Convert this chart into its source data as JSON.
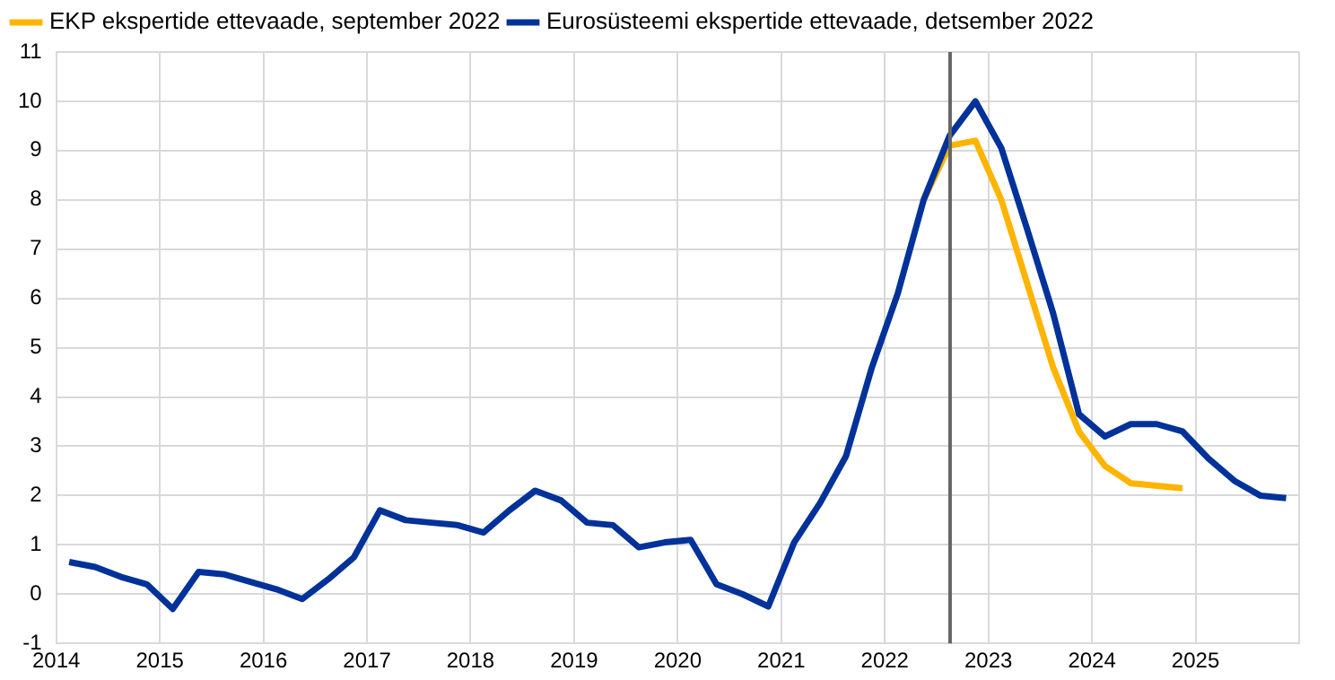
{
  "chart_data": {
    "type": "line",
    "x": [
      2014.125,
      2014.375,
      2014.625,
      2014.875,
      2015.125,
      2015.375,
      2015.625,
      2015.875,
      2016.125,
      2016.375,
      2016.625,
      2016.875,
      2017.125,
      2017.375,
      2017.625,
      2017.875,
      2018.125,
      2018.375,
      2018.625,
      2018.875,
      2019.125,
      2019.375,
      2019.625,
      2019.875,
      2020.125,
      2020.375,
      2020.625,
      2020.875,
      2021.125,
      2021.375,
      2021.625,
      2021.875,
      2022.125,
      2022.375,
      2022.625,
      2022.875,
      2023.125,
      2023.375,
      2023.625,
      2023.875,
      2024.125,
      2024.375,
      2024.625,
      2024.875,
      2025.125,
      2025.375,
      2025.625,
      2025.875
    ],
    "series": [
      {
        "name": "EKP ekspertide ettevaade, september 2022",
        "color": "#ffb400",
        "values": [
          null,
          null,
          null,
          null,
          null,
          null,
          null,
          null,
          null,
          null,
          null,
          null,
          null,
          null,
          null,
          null,
          null,
          null,
          null,
          null,
          null,
          null,
          null,
          null,
          null,
          null,
          null,
          null,
          null,
          null,
          null,
          null,
          null,
          8.0,
          9.1,
          9.2,
          8.0,
          6.3,
          4.6,
          3.3,
          2.6,
          2.25,
          2.2,
          2.15,
          null,
          null,
          null,
          null
        ]
      },
      {
        "name": "Eurosüsteemi ekspertide ettevaade, detsember 2022",
        "color": "#003299",
        "values": [
          0.65,
          0.55,
          0.35,
          0.2,
          -0.3,
          0.45,
          0.4,
          0.25,
          0.1,
          -0.1,
          0.3,
          0.75,
          1.7,
          1.5,
          1.45,
          1.4,
          1.25,
          1.7,
          2.1,
          1.9,
          1.45,
          1.4,
          0.95,
          1.05,
          1.1,
          0.2,
          0.0,
          -0.25,
          1.05,
          1.85,
          2.8,
          4.6,
          6.1,
          8.0,
          9.3,
          10.0,
          9.05,
          7.4,
          5.7,
          3.65,
          3.2,
          3.45,
          3.45,
          3.3,
          2.75,
          2.3,
          2.0,
          1.95
        ]
      }
    ],
    "xlim": [
      2014,
      2026
    ],
    "xticks": [
      2014,
      2015,
      2016,
      2017,
      2018,
      2019,
      2020,
      2021,
      2022,
      2023,
      2024,
      2025,
      {
        "value": 2026,
        "label": null
      }
    ],
    "ylim": [
      -1,
      11
    ],
    "yticks": [
      -1,
      0,
      1,
      2,
      3,
      4,
      5,
      6,
      7,
      8,
      9,
      10,
      11
    ],
    "ref_lines": [
      {
        "axis": "x",
        "value": 2022.63,
        "color": "#666666"
      }
    ],
    "grid": true,
    "legend": "top left",
    "marker": "none",
    "line_style": "solid"
  }
}
